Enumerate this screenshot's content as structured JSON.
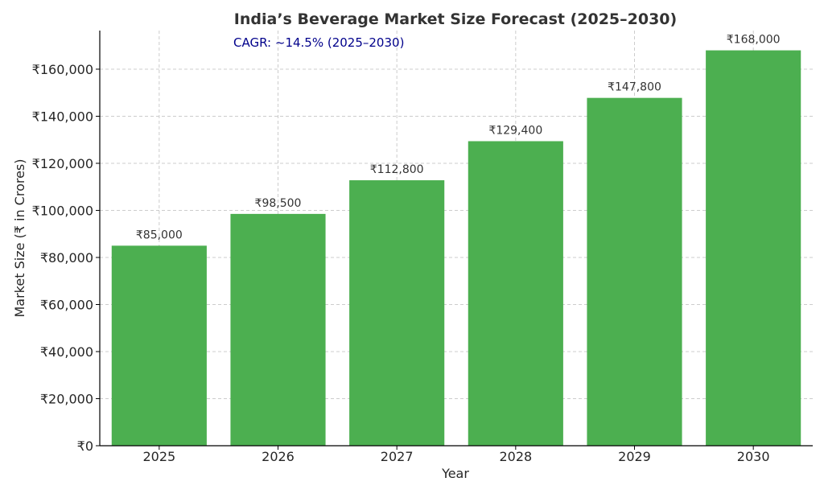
{
  "chart_data": {
    "type": "bar",
    "title": "India’s Beverage Market Size Forecast (2025–2030)",
    "annotation": "CAGR: ~14.5% (2025–2030)",
    "xlabel": "Year",
    "ylabel": "Market Size (₹ in Crores)",
    "categories": [
      "2025",
      "2026",
      "2027",
      "2028",
      "2029",
      "2030"
    ],
    "values": [
      85000,
      98500,
      112800,
      129400,
      147800,
      168000
    ],
    "data_labels": [
      "₹85,000",
      "₹98,500",
      "₹112,800",
      "₹129,400",
      "₹147,800",
      "₹168,000"
    ],
    "ylim": [
      0,
      176400
    ],
    "yticks": [
      0,
      20000,
      40000,
      60000,
      80000,
      100000,
      120000,
      140000,
      160000
    ],
    "ytick_labels": [
      "₹0",
      "₹20,000",
      "₹40,000",
      "₹60,000",
      "₹80,000",
      "₹100,000",
      "₹120,000",
      "₹140,000",
      "₹160,000"
    ],
    "grid": true,
    "bar_color": "#4caf50"
  }
}
